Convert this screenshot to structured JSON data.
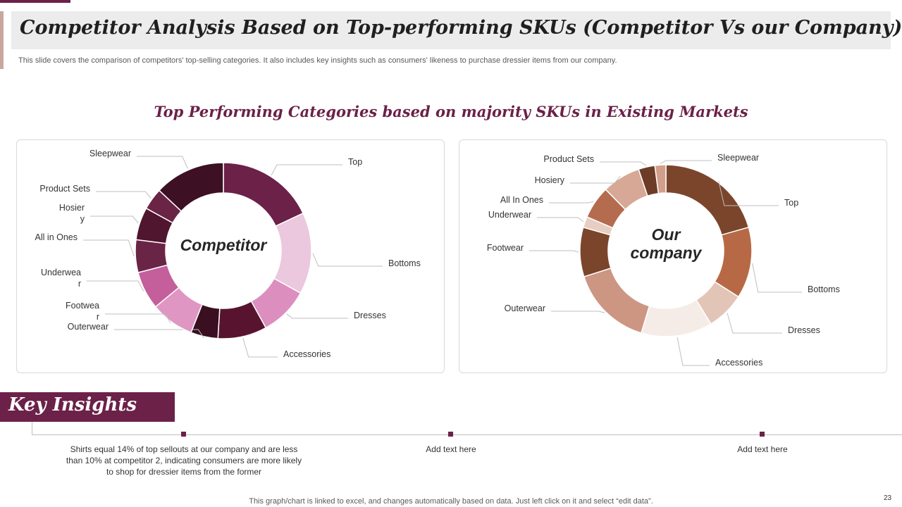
{
  "title": "Competitor Analysis Based on Top-performing SKUs (Competitor Vs our Company)",
  "subtitle": "This slide covers the comparison of competitors' top-selling categories. It also includes key insights such as consumers' likeness to purchase dressier items from our company.",
  "chart_heading": "Top Performing Categories based on majority SKUs in Existing Markets",
  "chart_data": [
    {
      "type": "pie",
      "variant": "donut",
      "center_label": "Competitor",
      "categories": [
        "Top",
        "Bottoms",
        "Dresses",
        "Accessories",
        "Outerwear",
        "Footwear",
        "Underwear",
        "All in Ones",
        "Hosiery",
        "Product Sets",
        "Sleepwear"
      ],
      "values": [
        18,
        15,
        9,
        9,
        5,
        8,
        7,
        6,
        6,
        4,
        13
      ],
      "labels": [
        "Top",
        "Bottoms",
        "Dresses",
        "Accessories",
        "Outerwear",
        "Footwea\nr",
        "Underwea\nr",
        "All in Ones",
        "Hosier\ny",
        "Product Sets",
        "Sleepwear"
      ],
      "colors": [
        "#6b2148",
        "#ebc8dd",
        "#dc8fbf",
        "#58142f",
        "#3a0f20",
        "#df96c3",
        "#c45f9c",
        "#6a2446",
        "#50152f",
        "#6a2446",
        "#3d1023"
      ]
    },
    {
      "type": "pie",
      "variant": "donut",
      "center_label": "Our company",
      "categories": [
        "Top",
        "Bottoms",
        "Dresses",
        "Accessories",
        "Outerwear",
        "Footwear",
        "Underwear",
        "All In Ones",
        "Hosiery",
        "Product Sets",
        "Sleepwear"
      ],
      "values": [
        20,
        13,
        7,
        13,
        15,
        9,
        2,
        6,
        7,
        3,
        2
      ],
      "labels": [
        "Top",
        "Bottoms",
        "Dresses",
        "Accessories",
        "Outerwear",
        "Footwear",
        "Underwear",
        "All In Ones",
        "Hosiery",
        "Product Sets",
        "Sleepwear"
      ],
      "colors": [
        "#7b452c",
        "#b76945",
        "#e2c5b7",
        "#f5ece8",
        "#cc9682",
        "#7b452c",
        "#e8cdc2",
        "#b56b4e",
        "#d6a895",
        "#6d3c26",
        "#d19f8a"
      ]
    }
  ],
  "insights": {
    "heading": "Key Insights",
    "items": [
      "Shirts equal 14% of top sellouts at our company and are less than 10% at competitor 2, indicating consumers are more likely to shop for dressier items from the former",
      "Add text here",
      "Add text here"
    ]
  },
  "footer": "This graph/chart is linked to excel, and changes automatically based on data. Just left click on it and select “edit data”.",
  "page_number": "23"
}
